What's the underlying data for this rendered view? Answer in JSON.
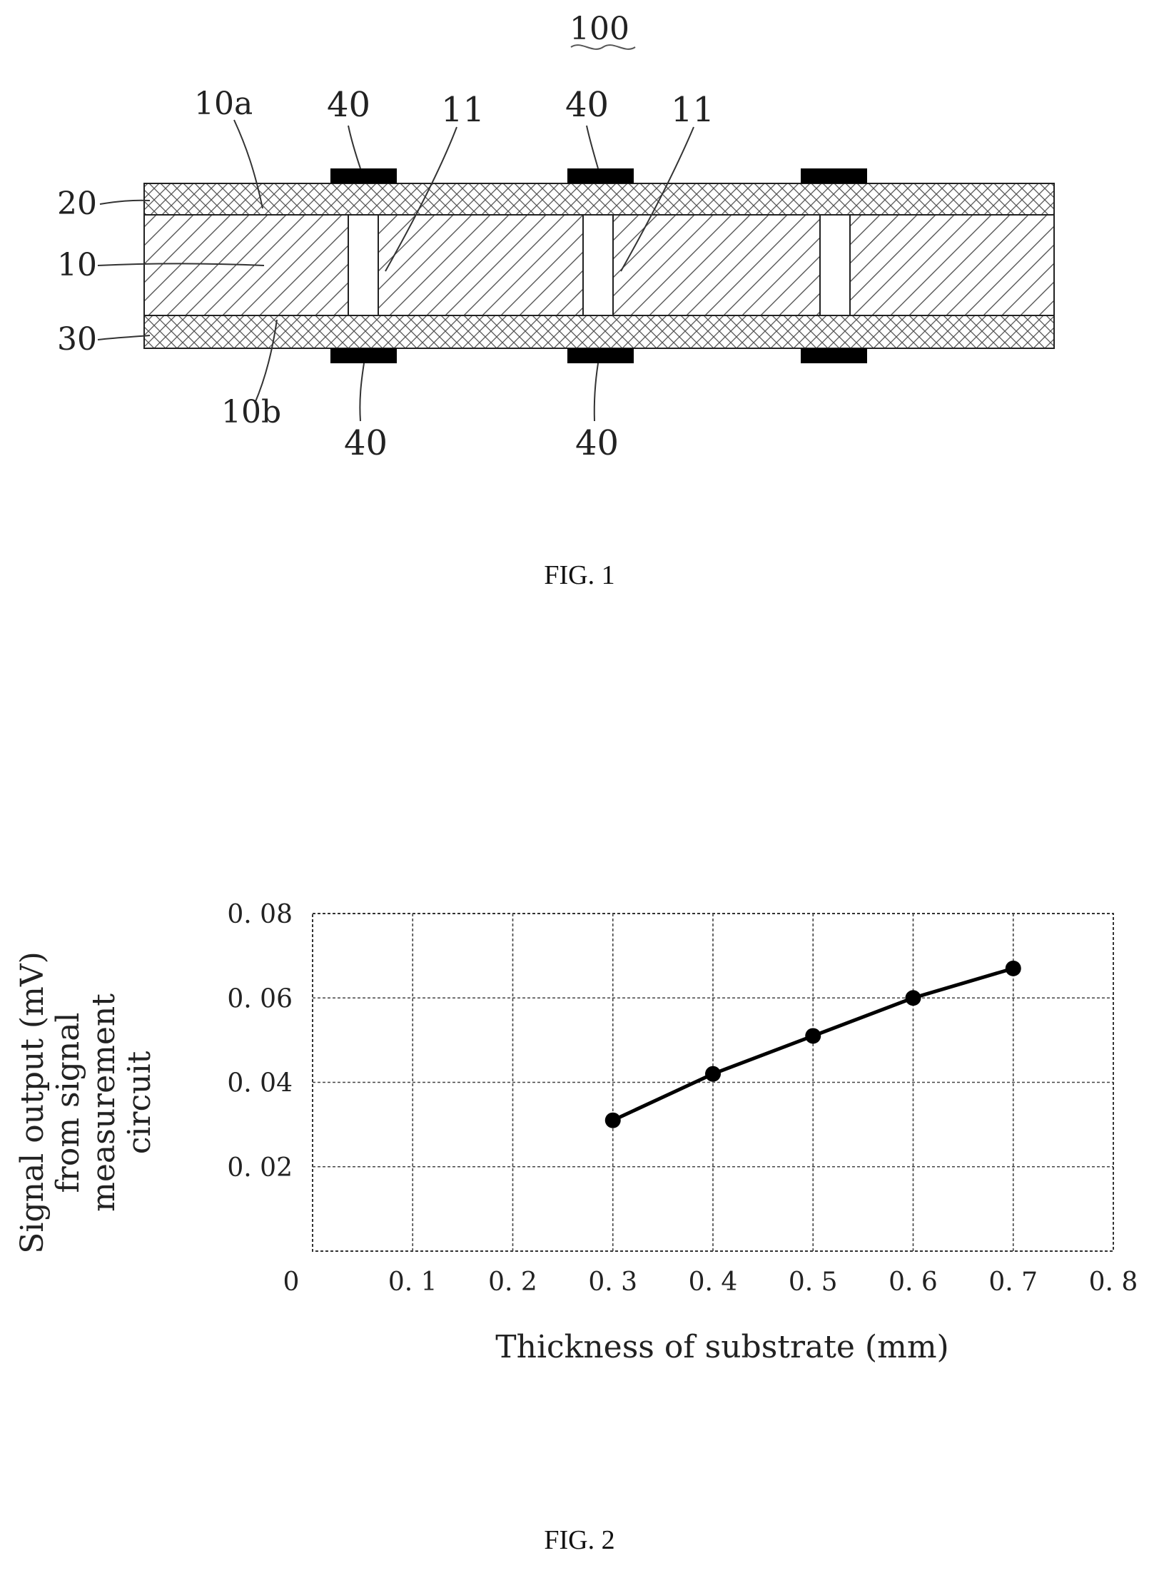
{
  "fig1": {
    "caption": "FIG. 1",
    "ref_labels": {
      "assembly": "100",
      "top_surface": "10a",
      "bottom_surface": "10b",
      "top_layer": "20",
      "substrate": "10",
      "bottom_layer": "30",
      "electrode": "40",
      "via": "11"
    }
  },
  "fig2": {
    "caption": "FIG. 2"
  },
  "chart_data": {
    "type": "line",
    "xlabel": "Thickness of substrate (mm)",
    "ylabel": "Signal output (mV) from signal measurement circuit",
    "ylabel_lines": [
      "Signal output (mV)",
      "from signal",
      "measurement",
      "circuit"
    ],
    "xlim": [
      0,
      0.8
    ],
    "ylim": [
      0,
      0.08
    ],
    "x_ticks": [
      "0",
      "0. 1",
      "0. 2",
      "0. 3",
      "0. 4",
      "0. 5",
      "0. 6",
      "0. 7",
      "0. 8"
    ],
    "y_ticks": [
      "0. 02",
      "0. 04",
      "0. 06",
      "0. 08"
    ],
    "grid": true,
    "series": [
      {
        "x": [
          0.3,
          0.4,
          0.5,
          0.6,
          0.7
        ],
        "y": [
          0.031,
          0.042,
          0.051,
          0.06,
          0.067
        ]
      }
    ]
  }
}
